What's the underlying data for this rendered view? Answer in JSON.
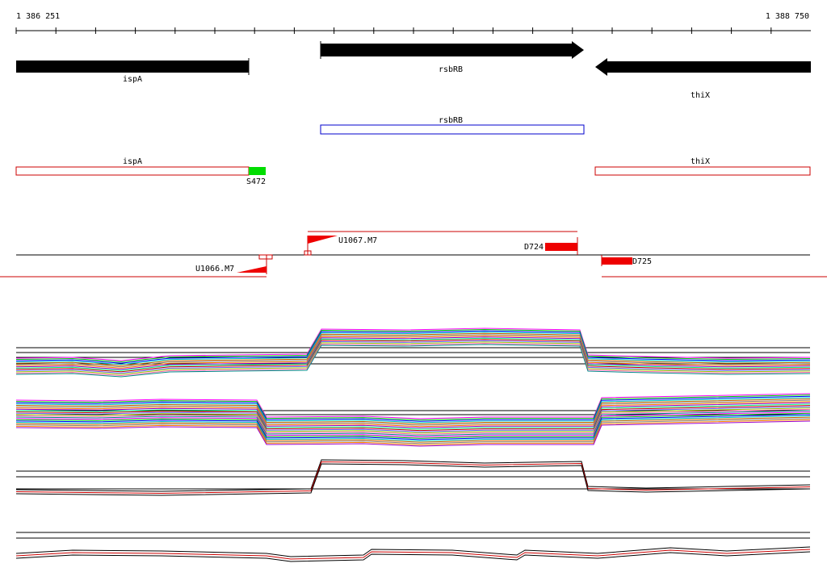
{
  "ruler": {
    "start": "1 386 251",
    "end": "1 388 750"
  },
  "genes": [
    {
      "label": "ispA"
    },
    {
      "label": "rsbRB"
    },
    {
      "label": "thiX"
    }
  ],
  "transcripts": [
    {
      "label": "rsbRB"
    },
    {
      "label": "ispA"
    },
    {
      "label": "thiX"
    }
  ],
  "features": [
    {
      "label": "S472"
    },
    {
      "label": "U1067.M7"
    },
    {
      "label": "D724"
    },
    {
      "label": "U1066.M7"
    },
    {
      "label": "D725"
    }
  ]
}
